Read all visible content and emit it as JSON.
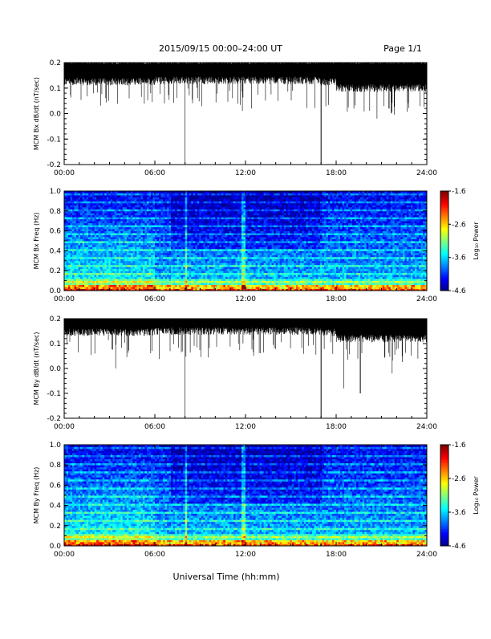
{
  "header": {
    "title": "2015/09/15  00:00–24:00 UT",
    "page": "Page 1/1"
  },
  "footer": {
    "xlabel": "Universal Time (hh:mm)"
  },
  "colorbar": {
    "label_html": "Log₁₀ Power",
    "ticks": [
      "-1.6",
      "-2.6",
      "-3.6",
      "-4.6"
    ]
  },
  "chart_data": [
    {
      "type": "line",
      "ylabel": "MCM Bx dB/dt (nT/sec)",
      "xlim": [
        0,
        24
      ],
      "ylim": [
        -0.2,
        0.2
      ],
      "x_ticks": [
        "00:00",
        "06:00",
        "12:00",
        "18:00",
        "24:00"
      ],
      "y_ticks": [
        "0.2",
        "0.1",
        "0.0",
        "-0.1",
        "-0.2"
      ],
      "baseline": 0.16,
      "spikes": [
        {
          "t": 8.0,
          "v": -0.2
        },
        {
          "t": 11.8,
          "v": 0.01
        },
        {
          "t": 17.0,
          "v": -0.2
        },
        {
          "t": 4.3,
          "v": 0.06
        },
        {
          "t": 20.7,
          "v": -0.02
        },
        {
          "t": 21.5,
          "v": 0.02
        }
      ]
    },
    {
      "type": "heatmap",
      "ylabel": "MCM Bx Freq (Hz)",
      "xlim": [
        0,
        24
      ],
      "ylim": [
        0,
        1.0
      ],
      "x_ticks": [
        "00:00",
        "06:00",
        "12:00",
        "18:00",
        "24:00"
      ],
      "y_ticks": [
        "1.0",
        "0.8",
        "0.6",
        "0.4",
        "0.2",
        "0.0"
      ],
      "zlim": [
        -4.6,
        -1.6
      ]
    },
    {
      "type": "line",
      "ylabel": "MCM By dB/dt (nT/sec)",
      "xlim": [
        0,
        24
      ],
      "ylim": [
        -0.2,
        0.2
      ],
      "x_ticks": [
        "00:00",
        "06:00",
        "12:00",
        "18:00",
        "24:00"
      ],
      "y_ticks": [
        "0.2",
        "0.1",
        "0.0",
        "-0.1",
        "-0.2"
      ],
      "baseline": 0.18,
      "spikes": [
        {
          "t": 8.0,
          "v": -0.2
        },
        {
          "t": 17.0,
          "v": -0.2
        },
        {
          "t": 18.5,
          "v": -0.08
        },
        {
          "t": 19.6,
          "v": -0.1
        },
        {
          "t": 21.7,
          "v": -0.02
        },
        {
          "t": 3.4,
          "v": 0.0
        }
      ]
    },
    {
      "type": "heatmap",
      "ylabel": "MCM By Freq (Hz)",
      "xlim": [
        0,
        24
      ],
      "ylim": [
        0,
        1.0
      ],
      "x_ticks": [
        "00:00",
        "06:00",
        "12:00",
        "18:00",
        "24:00"
      ],
      "y_ticks": [
        "1.0",
        "0.8",
        "0.6",
        "0.4",
        "0.2",
        "0.0"
      ],
      "zlim": [
        -4.6,
        -1.6
      ]
    }
  ]
}
